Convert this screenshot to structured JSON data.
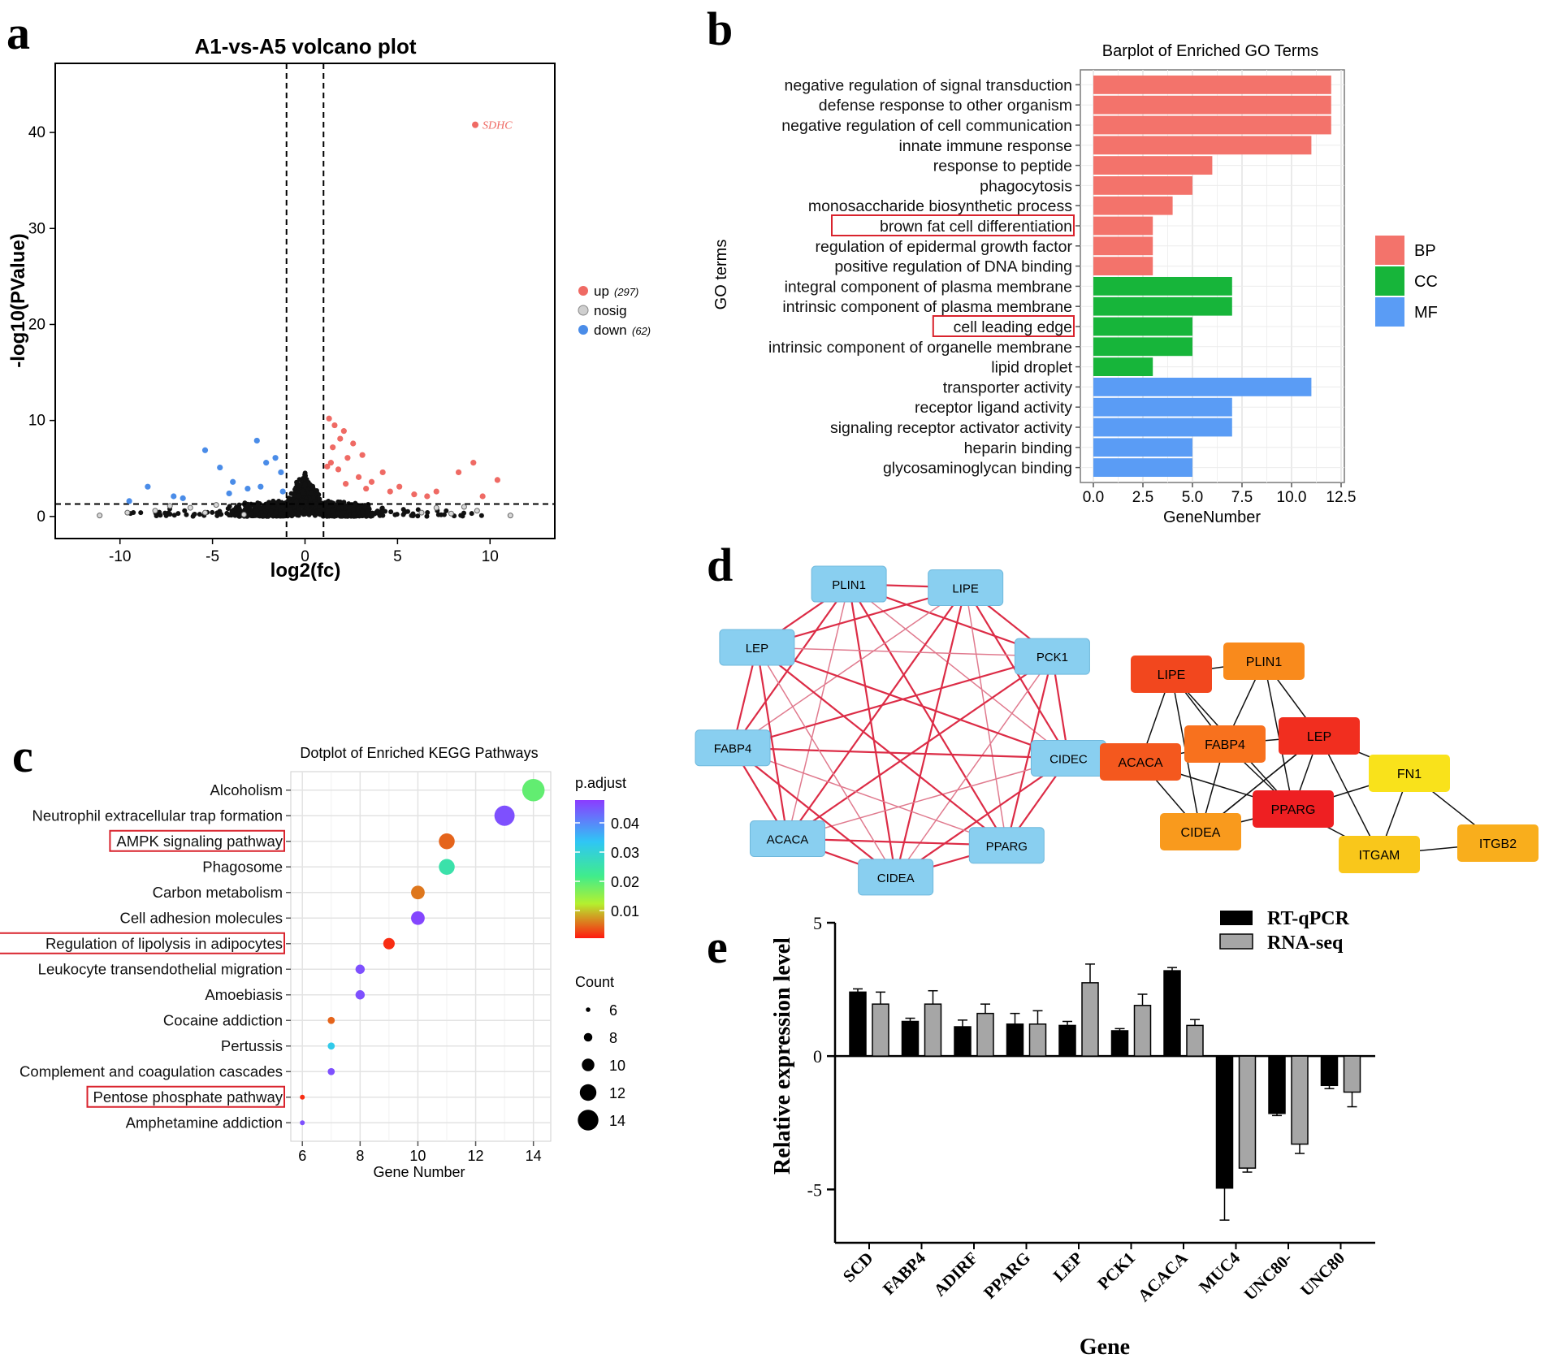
{
  "panels": {
    "a": "a",
    "b": "b",
    "c": "c",
    "d": "d",
    "e": "e"
  },
  "volcano": {
    "title": "A1-vs-A5 volcano plot",
    "xlabel": "log2(fc)",
    "ylabel": "-log10(PValue)",
    "xticks": [
      -10,
      -5,
      0,
      5,
      10
    ],
    "yticks": [
      0,
      10,
      20,
      30,
      40
    ],
    "xlim": [
      -13.5,
      13.5
    ],
    "ylim": [
      -2.3,
      47.2
    ],
    "fc_threshold": 1,
    "p_threshold": 1.3,
    "annotation": {
      "label": "SDHC",
      "x": 9.2,
      "y": 40.8
    },
    "legend": [
      {
        "label": "up",
        "count": "(297)",
        "color": "#EF6A64"
      },
      {
        "label": "nosig",
        "count": "",
        "color": "#CFCFCF"
      },
      {
        "label": "down",
        "count": "(62)",
        "color": "#4A8CE8"
      }
    ]
  },
  "chart_data": [
    {
      "type": "scatter",
      "title": "A1-vs-A5 volcano plot",
      "xlabel": "log2(fc)",
      "ylabel": "-log10(PValue)",
      "up": [
        [
          1.3,
          10.2
        ],
        [
          1.6,
          9.5
        ],
        [
          2.1,
          8.9
        ],
        [
          1.9,
          8.1
        ],
        [
          2.6,
          7.6
        ],
        [
          1.5,
          7.2
        ],
        [
          3.1,
          6.4
        ],
        [
          2.3,
          6.1
        ],
        [
          1.4,
          5.6
        ],
        [
          4.2,
          4.6
        ],
        [
          3.6,
          3.6
        ],
        [
          2.9,
          4.1
        ],
        [
          1.8,
          4.9
        ],
        [
          5.1,
          3.1
        ],
        [
          4.6,
          2.6
        ],
        [
          5.9,
          2.3
        ],
        [
          6.6,
          2.1
        ],
        [
          7.1,
          2.6
        ],
        [
          8.3,
          4.6
        ],
        [
          9.1,
          5.6
        ],
        [
          10.4,
          3.8
        ],
        [
          9.6,
          2.1
        ],
        [
          3.3,
          2.9
        ],
        [
          2.2,
          3.4
        ],
        [
          1.2,
          5.2
        ]
      ],
      "down": [
        [
          -9.5,
          1.6
        ],
        [
          -8.5,
          3.1
        ],
        [
          -7.1,
          2.1
        ],
        [
          -6.6,
          1.9
        ],
        [
          -5.4,
          6.9
        ],
        [
          -4.6,
          5.1
        ],
        [
          -3.9,
          3.6
        ],
        [
          -2.6,
          7.9
        ],
        [
          -2.1,
          5.6
        ],
        [
          -1.6,
          6.1
        ],
        [
          -1.3,
          4.6
        ],
        [
          -3.1,
          2.9
        ],
        [
          -4.1,
          2.4
        ],
        [
          -2.4,
          3.1
        ],
        [
          -1.2,
          2.6
        ]
      ],
      "nosig_edge": [
        [
          -11.1,
          0.1
        ],
        [
          -9.6,
          0.4
        ],
        [
          -8.1,
          0.6
        ],
        [
          -7.3,
          1.1
        ],
        [
          -6.2,
          0.9
        ],
        [
          -5.4,
          0.4
        ],
        [
          -4.8,
          1.2
        ],
        [
          -3.3,
          0.2
        ],
        [
          6.3,
          0.4
        ],
        [
          7.1,
          0.9
        ],
        [
          7.9,
          0.3
        ],
        [
          8.6,
          1.0
        ],
        [
          9.3,
          0.6
        ],
        [
          11.1,
          0.1
        ]
      ],
      "xlim": [
        -13.5,
        13.5
      ],
      "ylim": [
        -2.3,
        47.2
      ]
    },
    {
      "type": "bar",
      "title": "Barplot of Enriched GO Terms",
      "xlabel": "GeneNumber",
      "ylabel": "GO terms",
      "xticks": [
        "0.0",
        "2.5",
        "5.0",
        "7.5",
        "10.0",
        "12.5"
      ],
      "xlim": [
        0,
        12.5
      ],
      "categories": [
        "negative regulation of signal transduction",
        "defense response to other organism",
        "negative regulation of cell communication",
        "innate immune response",
        "response to peptide",
        "phagocytosis",
        "monosaccharide biosynthetic process",
        "brown fat cell differentiation",
        "regulation of epidermal growth factor",
        "positive regulation of DNA binding",
        "integral component of plasma membrane",
        "intrinsic component of plasma membrane",
        "cell leading edge",
        "intrinsic component of organelle membrane",
        "lipid droplet",
        "transporter activity",
        "receptor ligand activity",
        "signaling receptor activator activity",
        "heparin binding",
        "glycosaminoglycan binding"
      ],
      "values": [
        12,
        12,
        12,
        11,
        6,
        5,
        4,
        3,
        3,
        3,
        7,
        7,
        5,
        5,
        3,
        11,
        7,
        7,
        5,
        5
      ],
      "groups": [
        "BP",
        "BP",
        "BP",
        "BP",
        "BP",
        "BP",
        "BP",
        "BP",
        "BP",
        "BP",
        "CC",
        "CC",
        "CC",
        "CC",
        "CC",
        "MF",
        "MF",
        "MF",
        "MF",
        "MF"
      ],
      "highlighted": [
        7,
        12
      ],
      "legend": [
        {
          "label": "BP",
          "color": "#F3736B"
        },
        {
          "label": "CC",
          "color": "#17B53A"
        },
        {
          "label": "MF",
          "color": "#5A9CF5"
        }
      ]
    },
    {
      "type": "scatter",
      "title": "Dotplot of Enriched KEGG Pathways",
      "xlabel": "Gene Number",
      "xticks": [
        6,
        8,
        10,
        12,
        14
      ],
      "xlim": [
        5.6,
        14.6
      ],
      "categories": [
        "Alcoholism",
        "Neutrophil extracellular trap formation",
        "AMPK signaling pathway",
        "Phagosome",
        "Carbon metabolism",
        "Cell adhesion molecules",
        "Regulation of lipolysis in adipocytes",
        "Leukocyte transendothelial migration",
        "Amoebiasis",
        "Cocaine addiction",
        "Pertussis",
        "Complement and coagulation cascades",
        "Pentose phosphate pathway",
        "Amphetamine addiction"
      ],
      "values": [
        14,
        13,
        11,
        11,
        10,
        10,
        9,
        8,
        8,
        7,
        7,
        7,
        6,
        6
      ],
      "p_adjust": [
        0.018,
        0.044,
        0.004,
        0.024,
        0.005,
        0.045,
        0.001,
        0.044,
        0.044,
        0.004,
        0.031,
        0.044,
        0.001,
        0.044
      ],
      "highlighted": [
        2,
        6,
        12
      ],
      "color_legend": {
        "title": "p.adjust",
        "ticks": [
          "0.04",
          "0.03",
          "0.02",
          "0.01"
        ]
      },
      "size_legend": {
        "title": "Count",
        "values": [
          6,
          8,
          10,
          12,
          14
        ]
      }
    },
    {
      "type": "bar",
      "title": "",
      "xlabel": "Gene",
      "ylabel": "Relative  expression level",
      "yticks": [
        -5,
        0,
        5
      ],
      "ylim": [
        -7,
        5
      ],
      "categories": [
        "SCD",
        "FABP4",
        "ADIRF",
        "PPARG",
        "LEP",
        "PCK1",
        "ACACA",
        "MUC4",
        "UNC80-",
        "UNC80"
      ],
      "series": [
        {
          "name": "RT-qPCR",
          "color": "#000000",
          "values": [
            2.4,
            1.3,
            1.1,
            1.2,
            1.15,
            0.95,
            3.2,
            -4.95,
            -2.15,
            -1.1
          ],
          "errors": [
            0.12,
            0.12,
            0.25,
            0.4,
            0.15,
            0.08,
            0.12,
            1.2,
            0.08,
            0.12
          ]
        },
        {
          "name": "RNA-seq",
          "color": "#A6A6A6",
          "values": [
            1.95,
            1.95,
            1.6,
            1.2,
            2.75,
            1.9,
            1.15,
            -4.2,
            -3.3,
            -1.35
          ],
          "errors": [
            0.45,
            0.5,
            0.35,
            0.5,
            0.7,
            0.42,
            0.22,
            0.15,
            0.35,
            0.55
          ]
        }
      ]
    }
  ],
  "network": {
    "left_nodes": [
      "PLIN1",
      "LIPE",
      "PCK1",
      "CIDEC",
      "PPARG",
      "CIDEA",
      "ACACA",
      "FABP4",
      "LEP"
    ],
    "right_nodes": [
      {
        "label": "LIPE",
        "color": "#F2471E"
      },
      {
        "label": "PLIN1",
        "color": "#F98A1C"
      },
      {
        "label": "ACACA",
        "color": "#F4581E"
      },
      {
        "label": "FABP4",
        "color": "#F8711E"
      },
      {
        "label": "LEP",
        "color": "#F12E1F"
      },
      {
        "label": "FN1",
        "color": "#F9E21B"
      },
      {
        "label": "PPARG",
        "color": "#EE1F22"
      },
      {
        "label": "CIDEA",
        "color": "#F99A1D"
      },
      {
        "label": "ITGAM",
        "color": "#F9C71B"
      },
      {
        "label": "ITGB2",
        "color": "#F9AE1C"
      }
    ],
    "left_color": "#89CFF0",
    "edge_color": "#DC2C46"
  }
}
